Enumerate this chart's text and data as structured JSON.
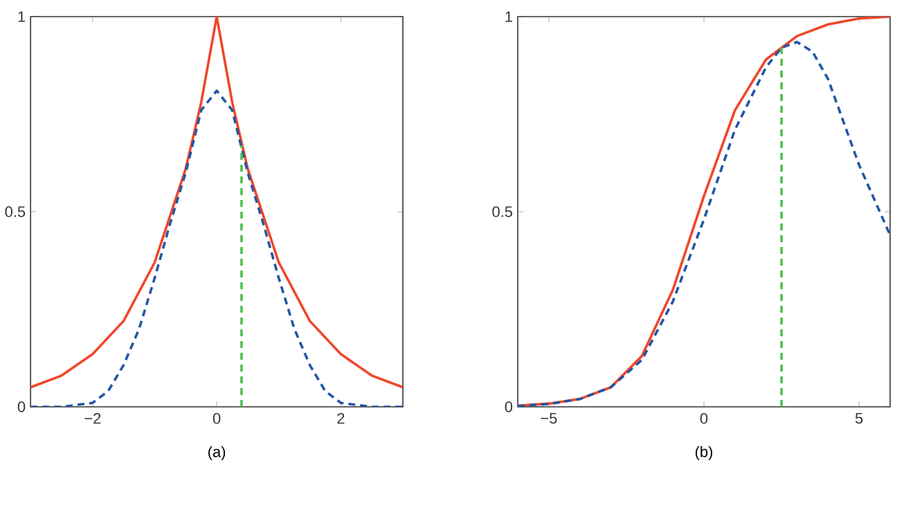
{
  "chart_data": [
    {
      "type": "line",
      "title": "(a)",
      "xlim": [
        -3,
        3
      ],
      "ylim": [
        0,
        1
      ],
      "xticks": [
        {
          "value": -2,
          "label": "−2"
        },
        0,
        2
      ],
      "yticks": [
        0,
        0.5,
        1
      ],
      "series": [
        {
          "color": "#f0462a",
          "line_style": "solid",
          "x": [
            -3,
            -2.5,
            -2,
            -1.5,
            -1,
            -0.5,
            -0.25,
            0,
            0.25,
            0.5,
            1,
            1.5,
            2,
            2.5,
            3
          ],
          "values": [
            0.05,
            0.08,
            0.135,
            0.22,
            0.37,
            0.61,
            0.78,
            1,
            0.78,
            0.61,
            0.37,
            0.22,
            0.135,
            0.08,
            0.05
          ]
        },
        {
          "color": "#2455a4",
          "line_style": "dashed",
          "x": [
            -3,
            -2.5,
            -2,
            -1.75,
            -1.5,
            -1.25,
            -1,
            -0.75,
            -0.5,
            -0.25,
            0,
            0.25,
            0.5,
            0.75,
            1,
            1.25,
            1.5,
            1.75,
            2,
            2.5,
            3
          ],
          "values": [
            0,
            0,
            0.01,
            0.04,
            0.107,
            0.2,
            0.33,
            0.47,
            0.6,
            0.76,
            0.81,
            0.76,
            0.6,
            0.47,
            0.33,
            0.2,
            0.107,
            0.04,
            0.01,
            0,
            0
          ]
        },
        {
          "color": "#4cc04c",
          "line_style": "dashed",
          "x": [
            0.4,
            0.4
          ],
          "values": [
            0,
            0.67
          ]
        }
      ]
    },
    {
      "type": "line",
      "title": "(b)",
      "xlim": [
        -6,
        6
      ],
      "ylim": [
        0,
        1
      ],
      "xticks": [
        {
          "value": -5,
          "label": "−5"
        },
        0,
        5
      ],
      "yticks": [
        0,
        0.5,
        1
      ],
      "series": [
        {
          "color": "#f0462a",
          "line_style": "solid",
          "x": [
            -6,
            -5,
            -4,
            -3,
            -2,
            -1,
            0,
            1,
            2,
            2.5,
            3,
            4,
            5,
            6
          ],
          "values": [
            0.003,
            0.008,
            0.02,
            0.05,
            0.13,
            0.3,
            0.54,
            0.76,
            0.89,
            0.92,
            0.95,
            0.98,
            0.995,
            1
          ]
        },
        {
          "color": "#2455a4",
          "line_style": "dashed",
          "x": [
            -6,
            -5,
            -4,
            -3,
            -2,
            -1,
            0,
            1,
            2,
            2.5,
            3,
            3.5,
            4,
            4.5,
            5,
            5.5,
            6
          ],
          "values": [
            0.002,
            0.007,
            0.02,
            0.05,
            0.12,
            0.27,
            0.48,
            0.71,
            0.87,
            0.92,
            0.935,
            0.91,
            0.84,
            0.73,
            0.62,
            0.53,
            0.44
          ]
        },
        {
          "color": "#4cc04c",
          "line_style": "dashed",
          "x": [
            2.5,
            2.5
          ],
          "values": [
            0,
            0.92
          ]
        }
      ]
    }
  ]
}
